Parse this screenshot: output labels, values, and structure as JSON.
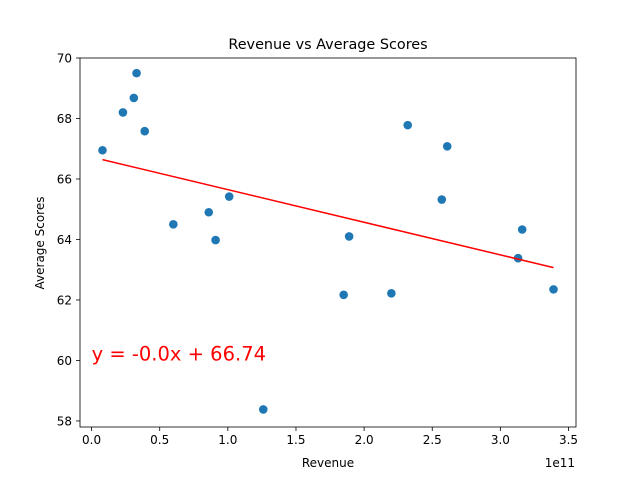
{
  "chart_data": {
    "type": "scatter",
    "title": "Revenue vs Average Scores",
    "xlabel": "Revenue",
    "ylabel": "Average Scores",
    "x_offset_label": "1e11",
    "x_scale": 100000000000,
    "xlim": [
      -0.085,
      3.555
    ],
    "ylim": [
      57.8,
      70.0
    ],
    "x_ticks": [
      0.0,
      0.5,
      1.0,
      1.5,
      2.0,
      2.5,
      3.0,
      3.5
    ],
    "x_tick_labels": [
      "0.0",
      "0.5",
      "1.0",
      "1.5",
      "2.0",
      "2.5",
      "3.0",
      "3.5"
    ],
    "y_ticks": [
      58,
      60,
      62,
      64,
      66,
      68,
      70
    ],
    "y_tick_labels": [
      "58",
      "60",
      "62",
      "64",
      "66",
      "68",
      "70"
    ],
    "grid": false,
    "point_color": "#1f77b4",
    "points": [
      {
        "x": 0.08,
        "y": 66.95
      },
      {
        "x": 0.23,
        "y": 68.2
      },
      {
        "x": 0.31,
        "y": 68.68
      },
      {
        "x": 0.33,
        "y": 69.5
      },
      {
        "x": 0.39,
        "y": 67.58
      },
      {
        "x": 0.6,
        "y": 64.5
      },
      {
        "x": 0.86,
        "y": 64.9
      },
      {
        "x": 0.91,
        "y": 63.98
      },
      {
        "x": 1.01,
        "y": 65.42
      },
      {
        "x": 1.26,
        "y": 58.38
      },
      {
        "x": 1.85,
        "y": 62.17
      },
      {
        "x": 1.89,
        "y": 64.1
      },
      {
        "x": 2.2,
        "y": 62.22
      },
      {
        "x": 2.32,
        "y": 67.78
      },
      {
        "x": 2.57,
        "y": 65.32
      },
      {
        "x": 2.61,
        "y": 67.08
      },
      {
        "x": 3.13,
        "y": 63.38
      },
      {
        "x": 3.16,
        "y": 64.33
      },
      {
        "x": 3.39,
        "y": 62.35
      }
    ],
    "trendline": {
      "color": "#ff0000",
      "x": [
        0.08,
        3.39
      ],
      "y": [
        66.64,
        63.07
      ]
    },
    "annotation": {
      "text": "y = -0.0x + 66.74",
      "color": "#ff0000",
      "x": 0.0,
      "y": 60.0
    }
  }
}
